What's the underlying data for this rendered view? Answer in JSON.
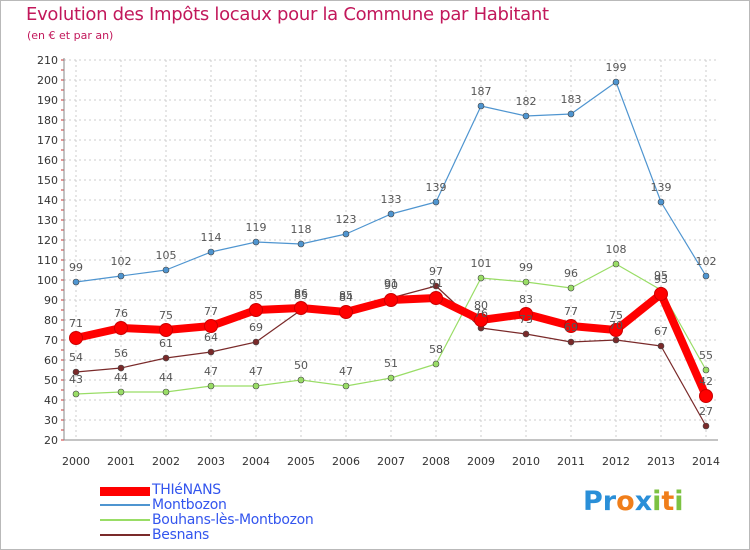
{
  "title": "Evolution des Impôts locaux pour la Commune par Habitant",
  "subtitle": "(en € et par an)",
  "logo": {
    "text": "Proxiti",
    "letters": [
      "P",
      "r",
      "o",
      "x",
      "i",
      "t",
      "i"
    ],
    "colors": [
      "#2a8fd8",
      "#2a8fd8",
      "#f07e1a",
      "#2a8fd8",
      "#7cc242",
      "#f07e1a",
      "#7cc242"
    ]
  },
  "chart_data": {
    "type": "line",
    "title": "Evolution des Impôts locaux pour la Commune par Habitant",
    "subtitle": "(en € et par an)",
    "xlabel": "",
    "ylabel": "",
    "x": [
      2000,
      2001,
      2002,
      2003,
      2004,
      2005,
      2006,
      2007,
      2008,
      2009,
      2010,
      2011,
      2012,
      2013,
      2014
    ],
    "ylim": [
      20,
      210
    ],
    "yticks": [
      20,
      30,
      40,
      50,
      60,
      70,
      80,
      90,
      100,
      110,
      120,
      130,
      140,
      150,
      160,
      170,
      180,
      190,
      200,
      210
    ],
    "grid": true,
    "legend_position": "bottom-left",
    "series": [
      {
        "name": "THIéNANS",
        "color": "#ff0000",
        "values": [
          71,
          76,
          75,
          77,
          85,
          86,
          84,
          90,
          91,
          80,
          83,
          77,
          75,
          93,
          42
        ]
      },
      {
        "name": "Montbozon",
        "color": "#4f95d0",
        "values": [
          99,
          102,
          105,
          114,
          119,
          118,
          123,
          133,
          139,
          187,
          182,
          183,
          199,
          139,
          102
        ]
      },
      {
        "name": "Bouhans-lès-Montbozon",
        "color": "#99dd66",
        "values": [
          43,
          44,
          44,
          47,
          47,
          50,
          47,
          51,
          58,
          101,
          99,
          96,
          108,
          95,
          55
        ]
      },
      {
        "name": "Besnans",
        "color": "#7a2a2a",
        "values": [
          54,
          56,
          61,
          64,
          69,
          85,
          85,
          91,
          97,
          76,
          73,
          69,
          70,
          67,
          27
        ]
      }
    ]
  }
}
